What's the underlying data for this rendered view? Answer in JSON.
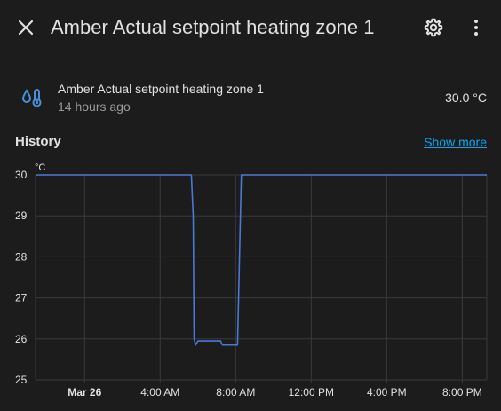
{
  "dialog": {
    "title": "Amber Actual setpoint heating zone 1"
  },
  "icons": {
    "close": "close-icon",
    "settings": "gear-icon",
    "more": "dots-vertical-icon",
    "entity": "thermometer-water-icon"
  },
  "entity": {
    "name": "Amber Actual setpoint heating zone 1",
    "last_changed": "14 hours ago",
    "state": "30.0 °C"
  },
  "history": {
    "title": "History",
    "show_more": "Show more"
  },
  "colors": {
    "background": "#1c1c1c",
    "line": "#4a78d6",
    "accent_link": "#03a9f4",
    "icon": "#4a90d9",
    "grid": "#3a3a3a"
  },
  "chart_data": {
    "type": "line",
    "unit_label": "°C",
    "ylim": [
      25,
      30
    ],
    "yticks": [
      "30",
      "29",
      "28",
      "27",
      "26",
      "25"
    ],
    "xticks": [
      {
        "label": "Mar 26",
        "hour": 24,
        "bold": true
      },
      {
        "label": "4:00 AM",
        "hour": 28,
        "bold": false
      },
      {
        "label": "8:00 AM",
        "hour": 32,
        "bold": false
      },
      {
        "label": "12:00 PM",
        "hour": 36,
        "bold": false
      },
      {
        "label": "4:00 PM",
        "hour": 40,
        "bold": false
      },
      {
        "label": "8:00 PM",
        "hour": 44,
        "bold": false
      }
    ],
    "xlim_hours": [
      21.4,
      45.3
    ],
    "grid": true,
    "series": [
      {
        "color": "#4a78d6",
        "hours": [
          21.4,
          29.65,
          29.75,
          29.8,
          29.88,
          30.0,
          30.1,
          30.3,
          31.2,
          31.3,
          31.5,
          32.1,
          32.2,
          32.3,
          45.3
        ],
        "values": [
          30,
          30,
          29.0,
          26.0,
          25.85,
          25.95,
          25.95,
          25.95,
          25.95,
          25.85,
          25.85,
          25.85,
          28.0,
          30,
          30
        ]
      }
    ]
  }
}
